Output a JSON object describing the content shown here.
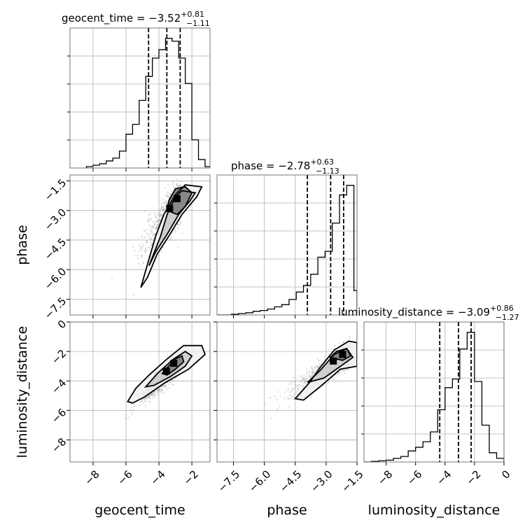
{
  "chart_data": [
    {
      "type": "histogram",
      "panel": "diag-0",
      "parameter": "geocent_time",
      "title": "geocent_time = −3.52",
      "title_sup": "+0.81",
      "title_sub": "−1.11",
      "median": -3.52,
      "plus": 0.81,
      "minus": 1.11,
      "quantiles": [
        -4.63,
        -3.52,
        -2.71
      ],
      "xlim": [
        -9.4,
        -0.9
      ],
      "bins": {
        "edges": [
          -8.4,
          -8.0,
          -7.6,
          -7.2,
          -6.8,
          -6.4,
          -6.0,
          -5.6,
          -5.2,
          -4.8,
          -4.4,
          -4.0,
          -3.6,
          -3.2,
          -2.8,
          -2.4,
          -2.0,
          -1.6,
          -1.2,
          -0.8
        ],
        "counts": [
          1,
          2,
          3,
          5,
          7,
          12,
          24,
          31,
          48,
          65,
          78,
          84,
          92,
          90,
          78,
          60,
          20,
          6,
          1
        ]
      },
      "xticks": [],
      "show_x_ticklabels": false
    },
    {
      "type": "histogram",
      "panel": "diag-1",
      "parameter": "phase",
      "title": "phase = −2.78",
      "title_sup": "+0.63",
      "title_sub": "−1.13",
      "median": -2.78,
      "plus": 0.63,
      "minus": 1.13,
      "quantiles": [
        -3.91,
        -2.78,
        -2.15
      ],
      "xlim": [
        -8.3,
        -1.5
      ],
      "bins": {
        "edges": [
          -8.3,
          -7.95,
          -7.6,
          -7.25,
          -6.9,
          -6.55,
          -6.2,
          -5.85,
          -5.5,
          -5.15,
          -4.8,
          -4.45,
          -4.1,
          -3.75,
          -3.4,
          -3.05,
          -2.7,
          -2.35,
          -2.0,
          -1.65,
          -1.5
        ],
        "counts": [
          0,
          0,
          1,
          2,
          3,
          5,
          6,
          8,
          11,
          14,
          21,
          31,
          40,
          55,
          78,
          86,
          124,
          162,
          175,
          33
        ]
      },
      "show_x_ticklabels": false
    },
    {
      "type": "histogram",
      "panel": "diag-2",
      "parameter": "luminosity_distance",
      "title": "luminosity_distance = −3.09",
      "title_sup": "+0.86",
      "title_sub": "−1.27",
      "median": -3.09,
      "plus": 0.86,
      "minus": 1.27,
      "quantiles": [
        -4.36,
        -3.09,
        -2.23
      ],
      "xlim": [
        -9.5,
        0
      ],
      "bins": {
        "edges": [
          -9.5,
          -9.0,
          -8.5,
          -8.0,
          -7.5,
          -7.0,
          -6.5,
          -6.0,
          -5.5,
          -5.0,
          -4.5,
          -4.0,
          -3.5,
          -3.0,
          -2.5,
          -2.0,
          -1.5,
          -1.0,
          -0.5,
          0.0
        ],
        "counts": [
          0,
          1,
          2,
          3,
          6,
          9,
          18,
          24,
          33,
          49,
          85,
          121,
          135,
          184,
          211,
          131,
          60,
          15,
          6
        ]
      },
      "xticks": [
        -8,
        -6,
        -4,
        -2,
        0
      ],
      "xtick_labels": [
        "−8",
        "−6",
        "−4",
        "−2",
        "0"
      ],
      "xlabel": "luminosity_distance"
    },
    {
      "type": "scatter-contour",
      "panel": "joint-phase-geocent_time",
      "x": "geocent_time",
      "y": "phase",
      "xlim": [
        -9.4,
        -0.9
      ],
      "ylim": [
        -8.3,
        -1.2
      ],
      "ylabel": "phase",
      "yticks": [
        -1.5,
        -3.0,
        -4.5,
        -6.0,
        -7.5
      ],
      "ytick_labels": [
        "−1.5",
        "−3.0",
        "−4.5",
        "−6.0",
        "−7.5"
      ],
      "show_x_ticklabels": false,
      "density_center": [
        -2.9,
        -2.4
      ],
      "contour_levels": [
        [
          [
            -5.1,
            -6.9
          ],
          [
            -4.2,
            -4.3
          ],
          [
            -3.7,
            -3.2
          ],
          [
            -3.0,
            -2.2
          ],
          [
            -2.4,
            -1.7
          ],
          [
            -1.4,
            -1.8
          ],
          [
            -1.7,
            -2.3
          ],
          [
            -2.6,
            -3.2
          ],
          [
            -3.4,
            -4.3
          ],
          [
            -4.1,
            -5.2
          ],
          [
            -4.7,
            -6.4
          ]
        ],
        [
          [
            -4.6,
            -5.8
          ],
          [
            -3.9,
            -4.3
          ],
          [
            -3.5,
            -3.2
          ],
          [
            -3.0,
            -2.3
          ],
          [
            -2.6,
            -2.0
          ],
          [
            -1.8,
            -2.1
          ],
          [
            -2.1,
            -2.5
          ],
          [
            -2.8,
            -3.2
          ],
          [
            -3.5,
            -4.2
          ],
          [
            -4.2,
            -5.1
          ]
        ],
        [
          [
            -3.5,
            -3.0
          ],
          [
            -3.4,
            -2.5
          ],
          [
            -3.0,
            -1.9
          ],
          [
            -2.4,
            -1.8
          ],
          [
            -2.0,
            -2.1
          ],
          [
            -2.4,
            -2.8
          ],
          [
            -2.9,
            -3.2
          ]
        ]
      ]
    },
    {
      "type": "scatter-contour",
      "panel": "joint-luminosity_distance-geocent_time",
      "x": "geocent_time",
      "y": "luminosity_distance",
      "xlim": [
        -9.4,
        -0.9
      ],
      "ylim": [
        -9.5,
        0
      ],
      "xlabel": "geocent_time",
      "ylabel": "luminosity_distance",
      "xticks": [
        -8,
        -6,
        -4,
        -2
      ],
      "xtick_labels": [
        "−8",
        "−6",
        "−4",
        "−2"
      ],
      "yticks": [
        0,
        -2,
        -4,
        -6,
        -8
      ],
      "ytick_labels": [
        "0",
        "−2",
        "−4",
        "−6",
        "−8"
      ],
      "density_center": [
        -3.1,
        -2.8
      ],
      "contour_levels": [
        [
          [
            -5.9,
            -5.4
          ],
          [
            -5.4,
            -4.5
          ],
          [
            -4.6,
            -3.6
          ],
          [
            -3.5,
            -2.5
          ],
          [
            -2.5,
            -1.6
          ],
          [
            -1.4,
            -1.6
          ],
          [
            -1.2,
            -2.2
          ],
          [
            -2.2,
            -3.2
          ],
          [
            -3.6,
            -4.1
          ],
          [
            -4.9,
            -5.1
          ],
          [
            -5.6,
            -5.5
          ]
        ],
        [
          [
            -4.8,
            -4.4
          ],
          [
            -4.1,
            -3.5
          ],
          [
            -3.1,
            -2.5
          ],
          [
            -2.4,
            -2.0
          ],
          [
            -2.0,
            -2.3
          ],
          [
            -2.4,
            -3.0
          ],
          [
            -3.3,
            -3.7
          ],
          [
            -4.3,
            -4.3
          ]
        ],
        [
          [
            -3.8,
            -3.5
          ],
          [
            -3.5,
            -3.1
          ],
          [
            -3.0,
            -2.5
          ],
          [
            -2.6,
            -2.3
          ],
          [
            -2.5,
            -2.7
          ],
          [
            -3.0,
            -3.2
          ],
          [
            -3.5,
            -3.6
          ]
        ]
      ]
    },
    {
      "type": "scatter-contour",
      "panel": "joint-luminosity_distance-phase",
      "x": "phase",
      "y": "luminosity_distance",
      "xlim": [
        -8.3,
        -1.5
      ],
      "ylim": [
        -9.5,
        0
      ],
      "xlabel": "phase",
      "xticks": [
        -7.5,
        -6.0,
        -4.5,
        -3.0,
        -1.5
      ],
      "xtick_labels": [
        "−7.5",
        "−6.0",
        "−4.5",
        "−3.0",
        "−1.5"
      ],
      "show_y_ticklabels": false,
      "density_center": [
        -2.2,
        -2.2
      ],
      "contour_levels": [
        [
          [
            -4.5,
            -5.2
          ],
          [
            -3.8,
            -4.1
          ],
          [
            -3.3,
            -3.1
          ],
          [
            -2.6,
            -1.9
          ],
          [
            -1.9,
            -1.3
          ],
          [
            -1.5,
            -1.4
          ],
          [
            -1.5,
            -3.0
          ],
          [
            -2.3,
            -3.2
          ],
          [
            -3.3,
            -4.4
          ],
          [
            -4.1,
            -5.3
          ]
        ],
        [
          [
            -3.9,
            -4.1
          ],
          [
            -3.3,
            -3.3
          ],
          [
            -2.6,
            -2.2
          ],
          [
            -2.0,
            -1.8
          ],
          [
            -1.7,
            -2.4
          ],
          [
            -2.2,
            -2.9
          ],
          [
            -3.1,
            -3.8
          ]
        ],
        [
          [
            -2.8,
            -2.4
          ],
          [
            -2.5,
            -2.0
          ],
          [
            -2.0,
            -1.8
          ],
          [
            -1.8,
            -2.3
          ],
          [
            -2.2,
            -2.6
          ]
        ]
      ]
    }
  ]
}
